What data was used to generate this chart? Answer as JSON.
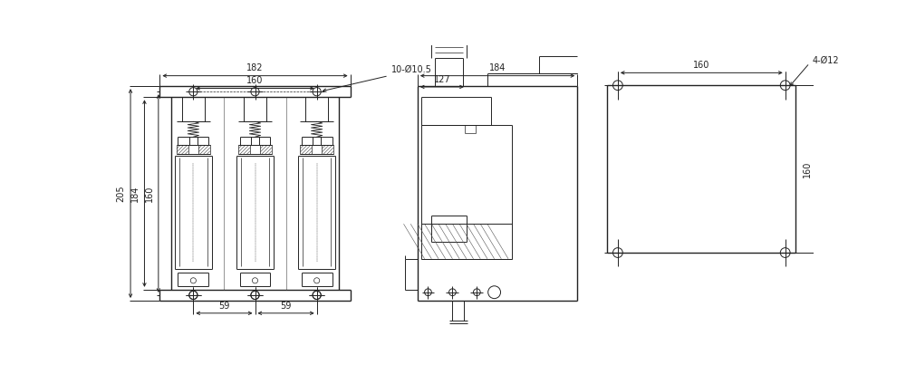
{
  "bg_color": "#ffffff",
  "line_color": "#222222",
  "fig_width": 10.0,
  "fig_height": 4.13,
  "dpi": 100,
  "labels": {
    "182": "182",
    "160h": "160",
    "10phi": "10-Ø10.5",
    "205": "205",
    "184v": "184",
    "160v": "160",
    "59a": "59",
    "59b": "59",
    "184h": "184",
    "127": "127",
    "160_v3h": "160",
    "160_v3v": "160",
    "4phi": "4-Ø12"
  }
}
